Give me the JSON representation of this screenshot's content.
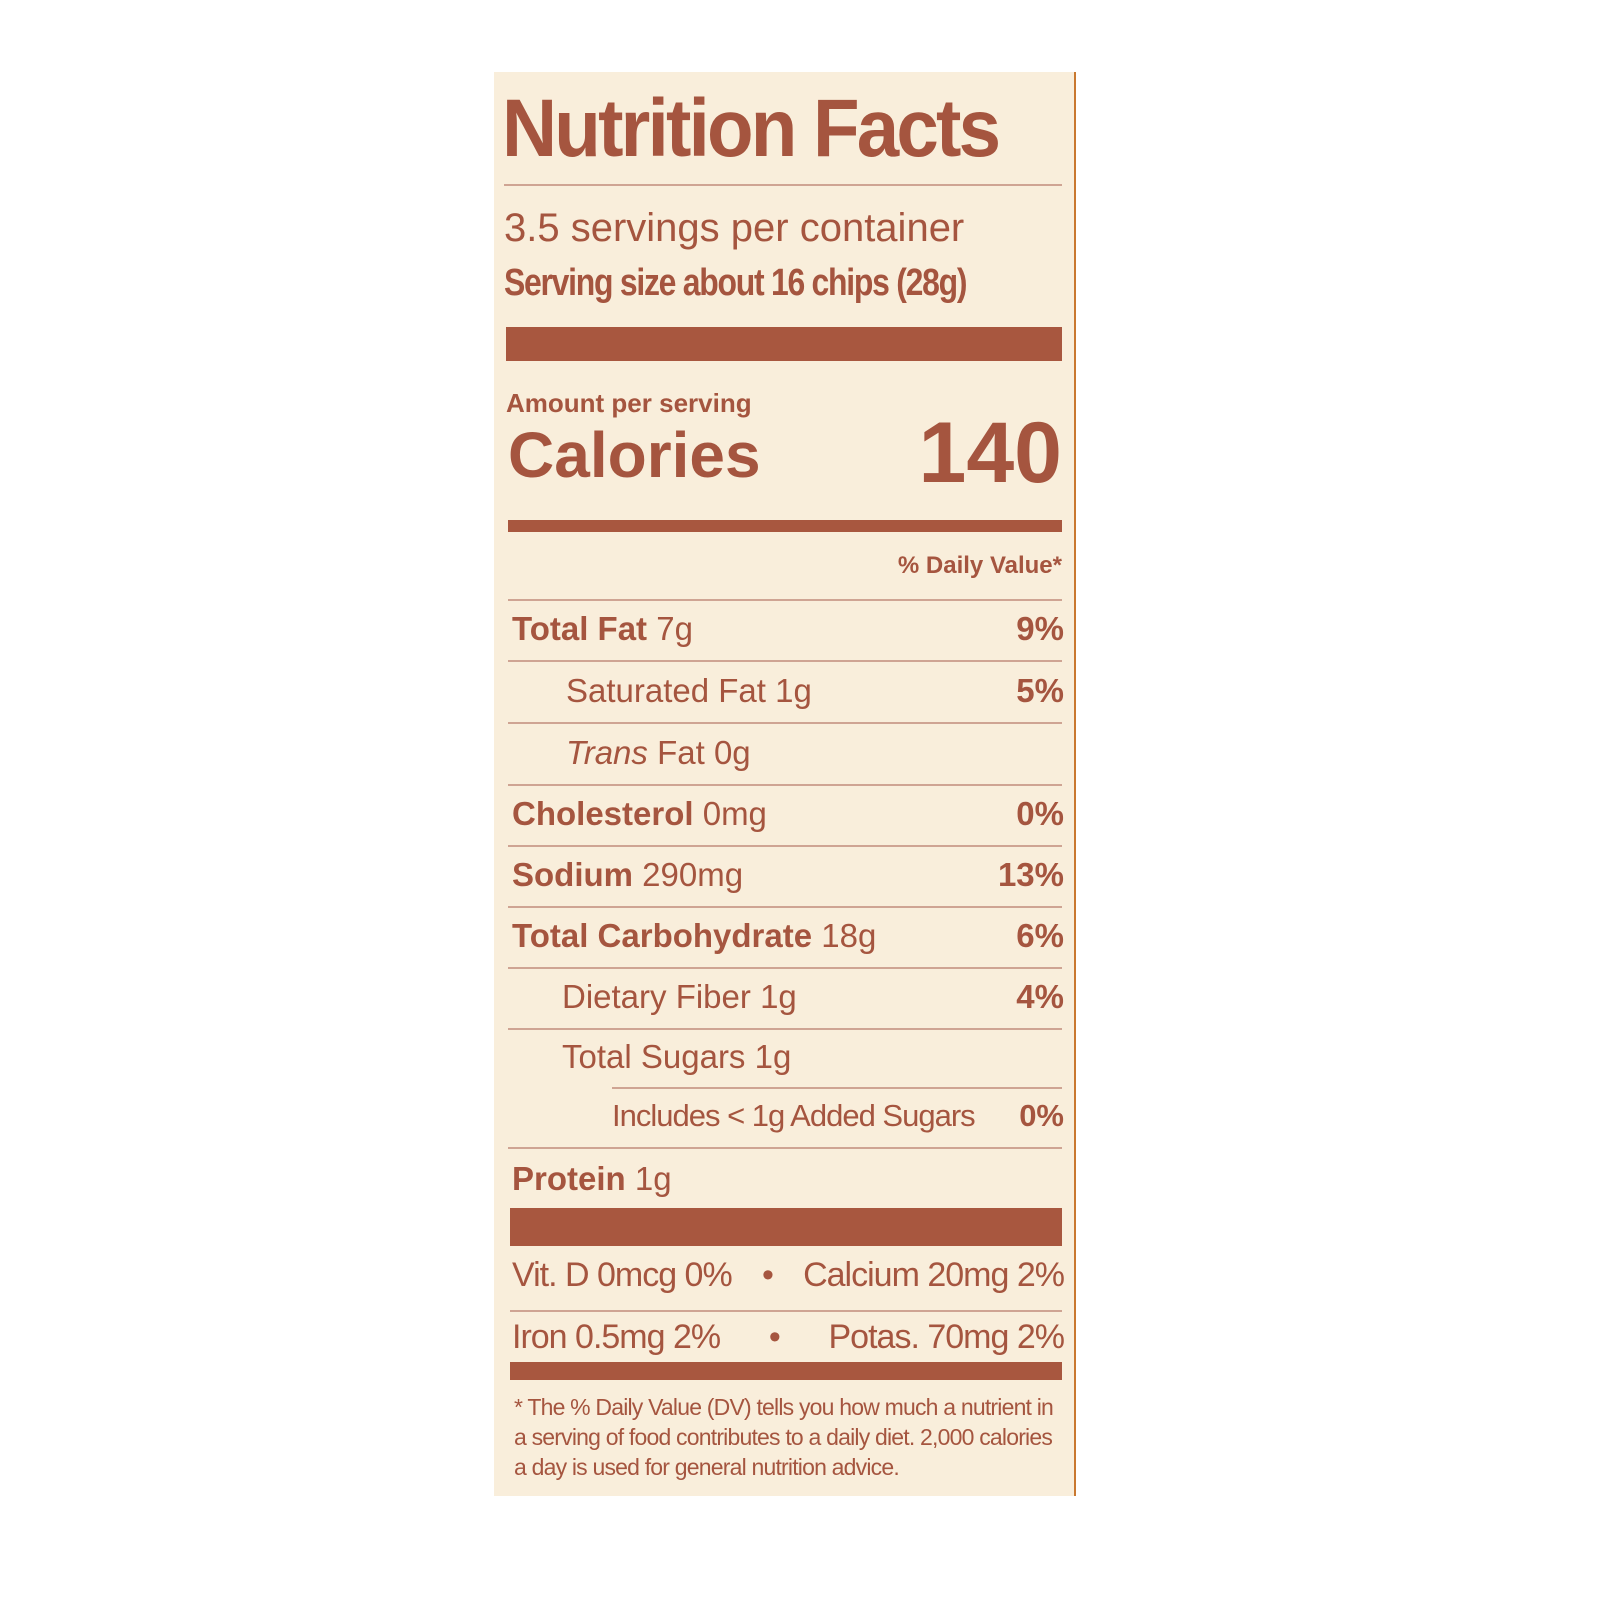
{
  "title": "Nutrition Facts",
  "servings_per_container": "3.5 servings per container",
  "serving_size_label": "Serving size",
  "serving_size_value": "about 16 chips (28g)",
  "amount_per_serving": "Amount per serving",
  "calories_label": "Calories",
  "calories_value": "140",
  "daily_value_header": "% Daily Value*",
  "nutrients": [
    {
      "name": "Total Fat",
      "amount": "7g",
      "dv": "9%"
    },
    {
      "name": "Saturated Fat",
      "amount": "1g",
      "dv": "5%"
    },
    {
      "name": "Trans",
      "name_suffix": "Fat",
      "amount": "0g",
      "dv": ""
    },
    {
      "name": "Cholesterol",
      "amount": "0mg",
      "dv": "0%"
    },
    {
      "name": "Sodium",
      "amount": "290mg",
      "dv": "13%"
    },
    {
      "name": "Total Carbohydrate",
      "amount": "18g",
      "dv": "6%"
    },
    {
      "name": "Dietary Fiber",
      "amount": "1g",
      "dv": "4%"
    },
    {
      "name": "Total Sugars",
      "amount": "1g",
      "dv": ""
    },
    {
      "name": "Includes < 1g Added Sugars",
      "amount": "",
      "dv": "0%"
    },
    {
      "name": "Protein",
      "amount": "1g",
      "dv": ""
    }
  ],
  "micronutrients": [
    {
      "left": "Vit. D 0mcg 0%",
      "right": "Calcium 20mg 2%"
    },
    {
      "left": "Iron 0.5mg 2%",
      "right": "Potas. 70mg 2%"
    }
  ],
  "separator": "•",
  "footnote": "* The % Daily Value (DV) tells you how much a nutrient in a serving of food contributes to a daily diet. 2,000 calories a day is used for general nutrition advice.",
  "colors": {
    "ink": "#a5553f",
    "background": "#f9eedb"
  }
}
